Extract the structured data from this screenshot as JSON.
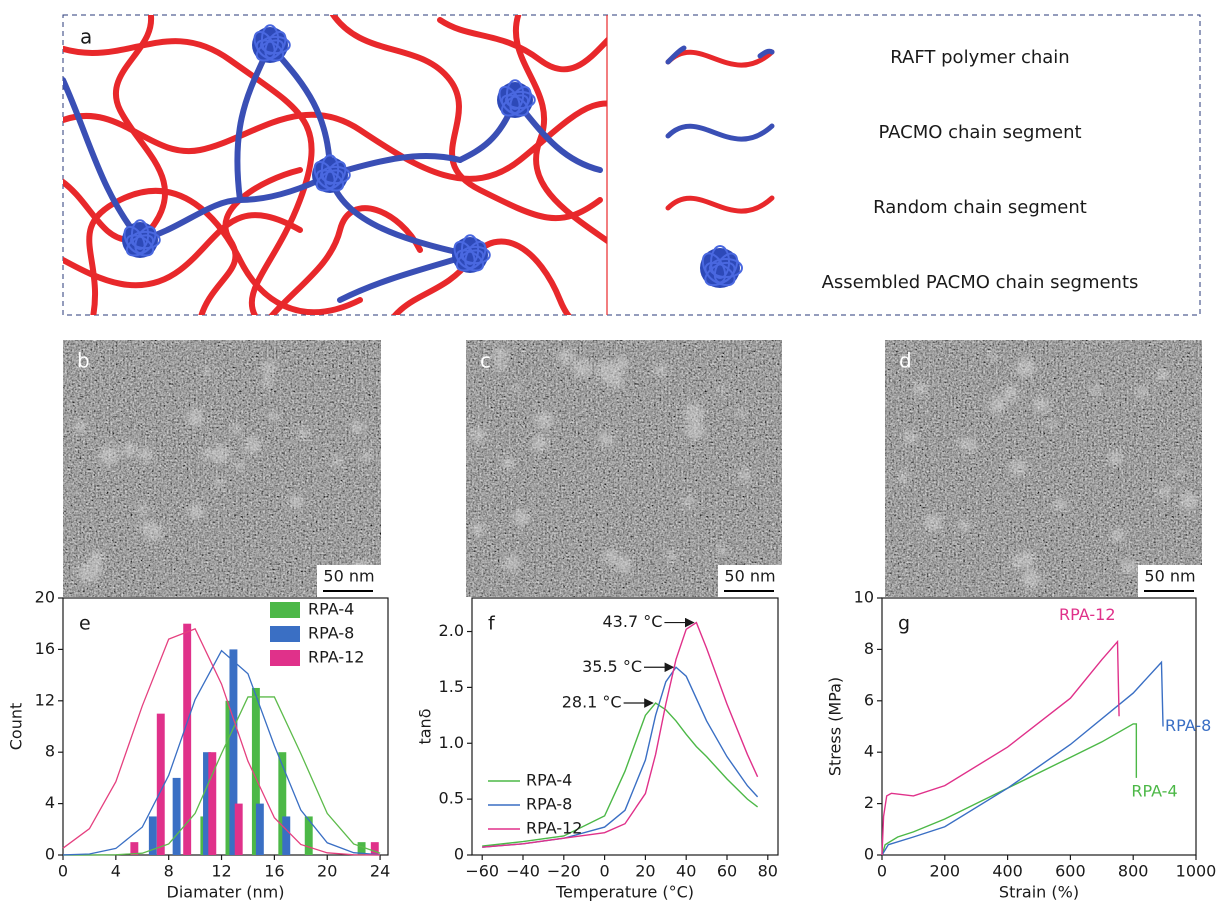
{
  "figure": {
    "panel_a": {
      "label": "a",
      "legend": [
        "RAFT polymer chain",
        "PACMO chain segment",
        "Random  chain segment",
        "Assembled PACMO chain segments"
      ]
    },
    "tem_panels": [
      {
        "label": "b",
        "scale_bar": "50 nm"
      },
      {
        "label": "c",
        "scale_bar": "50 nm"
      },
      {
        "label": "d",
        "scale_bar": "50 nm"
      }
    ]
  },
  "chart_data": [
    {
      "type": "bar",
      "panel_label": "e",
      "xlabel": "Diamater (nm)",
      "ylabel": "Count",
      "xlim": [
        0,
        24.6
      ],
      "ylim": [
        0,
        20
      ],
      "xticks": [
        0,
        4,
        8,
        12,
        16,
        20,
        24
      ],
      "yticks": [
        0,
        4,
        8,
        12,
        16,
        20
      ],
      "legend": "upper right",
      "series": [
        {
          "name": "RPA-4",
          "color": "#4cb847",
          "x": [
            10.7,
            12.6,
            14.6,
            16.6,
            18.6,
            22.6
          ],
          "values": [
            3,
            12,
            13,
            8,
            3,
            1
          ]
        },
        {
          "name": "RPA-8",
          "color": "#3a6fc4",
          "x": [
            6.8,
            8.6,
            10.9,
            12.9,
            14.9,
            16.9
          ],
          "values": [
            3,
            6,
            8,
            16,
            4,
            3
          ]
        },
        {
          "name": "RPA-12",
          "color": "#e0318a",
          "x": [
            5.4,
            7.4,
            9.4,
            11.3,
            13.3,
            23.6
          ],
          "values": [
            1,
            11,
            18,
            8,
            4,
            1
          ]
        }
      ],
      "fit_curves": [
        {
          "color": "#5dbb4b",
          "x": [
            0,
            2,
            4,
            6,
            8,
            10,
            12,
            14,
            16,
            18,
            20,
            22,
            24
          ],
          "values": [
            0,
            0,
            0.02,
            0.14,
            0.86,
            3.24,
            7.9,
            12.3,
            12.3,
            7.9,
            3.24,
            0.86,
            0.14
          ]
        },
        {
          "color": "#3a6fc4",
          "x": [
            0,
            2,
            4,
            6,
            8,
            10,
            12,
            14,
            16,
            18,
            20,
            22,
            24
          ],
          "values": [
            0.01,
            0.08,
            0.51,
            2.17,
            6.2,
            12.1,
            15.9,
            14.1,
            8.5,
            3.5,
            0.95,
            0.18,
            0.02
          ]
        },
        {
          "color": "#e5407f",
          "x": [
            0,
            2,
            4,
            6,
            8,
            10,
            12,
            14,
            16,
            18,
            20,
            22,
            24
          ],
          "values": [
            0.53,
            2.05,
            5.7,
            11.6,
            16.8,
            17.6,
            13.3,
            7.3,
            2.9,
            0.82,
            0.17,
            0.02,
            0
          ]
        }
      ]
    },
    {
      "type": "line",
      "panel_label": "f",
      "xlabel": "Temperature (°C)",
      "ylabel": "tanδ",
      "xlim": [
        -65,
        85
      ],
      "ylim": [
        0,
        2.3
      ],
      "xticks": [
        {
          "value": -60,
          "label": "−60"
        },
        {
          "value": -40,
          "label": "−40"
        },
        {
          "value": -20,
          "label": "−20"
        },
        0,
        20,
        40,
        60,
        80
      ],
      "yticks": [
        0,
        0.5,
        {
          "value": 1,
          "label": "1.0"
        },
        1.5,
        {
          "value": 2,
          "label": "2.0"
        }
      ],
      "legend": "lower left",
      "series": [
        {
          "name": "RPA-4",
          "color": "#4cb847",
          "peak_label": "28.1 °C",
          "x": [
            -60,
            -40,
            -20,
            0,
            10,
            20,
            25,
            30,
            35,
            40,
            45,
            50,
            60,
            70,
            75
          ],
          "values": [
            0.08,
            0.12,
            0.17,
            0.35,
            0.75,
            1.25,
            1.36,
            1.3,
            1.2,
            1.08,
            0.97,
            0.88,
            0.68,
            0.5,
            0.43
          ]
        },
        {
          "name": "RPA-8",
          "color": "#3a6fc4",
          "peak_label": "35.5 °C",
          "x": [
            -60,
            -40,
            -20,
            0,
            10,
            20,
            25,
            30,
            35,
            40,
            45,
            50,
            60,
            70,
            75
          ],
          "values": [
            0.07,
            0.1,
            0.15,
            0.25,
            0.4,
            0.85,
            1.25,
            1.55,
            1.68,
            1.6,
            1.4,
            1.2,
            0.88,
            0.62,
            0.52
          ]
        },
        {
          "name": "RPA-12",
          "color": "#e0318a",
          "peak_label": "43.7 °C",
          "x": [
            -60,
            -40,
            -20,
            0,
            10,
            20,
            25,
            30,
            35,
            40,
            45,
            50,
            60,
            70,
            75
          ],
          "values": [
            0.07,
            0.1,
            0.15,
            0.2,
            0.28,
            0.55,
            0.9,
            1.35,
            1.75,
            2.02,
            2.08,
            1.85,
            1.35,
            0.9,
            0.7
          ]
        }
      ]
    },
    {
      "type": "line",
      "panel_label": "g",
      "xlabel": "Strain (%)",
      "ylabel": "Stress (MPa)",
      "xlim": [
        0,
        1000
      ],
      "ylim": [
        0,
        10
      ],
      "xticks": [
        0,
        200,
        400,
        600,
        800,
        1000
      ],
      "yticks": [
        0,
        2,
        4,
        6,
        8,
        10
      ],
      "series": [
        {
          "name": "RPA-4",
          "color": "#4cb847",
          "x": [
            0,
            10,
            50,
            100,
            200,
            400,
            600,
            700,
            800,
            810,
            810
          ],
          "values": [
            0,
            0.4,
            0.7,
            0.9,
            1.4,
            2.6,
            3.8,
            4.4,
            5.1,
            5.1,
            3.0
          ]
        },
        {
          "name": "RPA-8",
          "color": "#3a6fc4",
          "x": [
            0,
            20,
            100,
            200,
            400,
            600,
            800,
            890,
            895
          ],
          "values": [
            0,
            0.4,
            0.7,
            1.1,
            2.6,
            4.3,
            6.3,
            7.5,
            5.0
          ]
        },
        {
          "name": "RPA-12",
          "color": "#e0318a",
          "x": [
            0,
            5,
            15,
            30,
            100,
            200,
            400,
            600,
            700,
            750,
            755
          ],
          "values": [
            0,
            1.5,
            2.3,
            2.4,
            2.3,
            2.7,
            4.2,
            6.1,
            7.6,
            8.3,
            5.4
          ]
        }
      ]
    }
  ]
}
